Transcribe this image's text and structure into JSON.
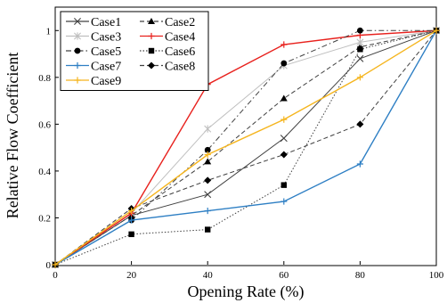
{
  "chart_data": {
    "type": "line",
    "x": [
      0,
      20,
      40,
      60,
      80,
      100
    ],
    "xlabel": "Opening Rate (%)",
    "ylabel": "Relative Flow Coefficient",
    "xlim": [
      0,
      100
    ],
    "ylim": [
      0,
      1.1
    ],
    "xticks": [
      "0",
      "20",
      "40",
      "60",
      "80",
      "100"
    ],
    "yticks": [
      "0",
      "0.2",
      "0.4",
      "0.6",
      "0.8",
      "1"
    ],
    "grid": false,
    "legend_position": "top-left",
    "series": [
      {
        "name": "Case1",
        "values": [
          0,
          0.21,
          0.3,
          0.54,
          0.88,
          1.0
        ],
        "color": "#404040",
        "marker": "x",
        "dash": "solid"
      },
      {
        "name": "Case2",
        "values": [
          0,
          0.21,
          0.44,
          0.71,
          0.93,
          1.0
        ],
        "color": "#404040",
        "marker": "triangle",
        "dash": "dashed"
      },
      {
        "name": "Case3",
        "values": [
          0,
          0.22,
          0.58,
          0.85,
          0.95,
          1.0
        ],
        "color": "#bfbfbf",
        "marker": "asterisk",
        "dash": "solid"
      },
      {
        "name": "Case4",
        "values": [
          0,
          0.22,
          0.77,
          0.94,
          0.98,
          1.0
        ],
        "color": "#e8211d",
        "marker": "plus",
        "dash": "solid"
      },
      {
        "name": "Case5",
        "values": [
          0,
          0.19,
          0.49,
          0.86,
          1.0,
          1.0
        ],
        "color": "#404040",
        "marker": "circle",
        "dash": "dashdot"
      },
      {
        "name": "Case6",
        "values": [
          0,
          0.13,
          0.15,
          0.34,
          0.92,
          1.0
        ],
        "color": "#404040",
        "marker": "square",
        "dash": "dotted"
      },
      {
        "name": "Case7",
        "values": [
          0,
          0.19,
          0.23,
          0.27,
          0.43,
          1.0
        ],
        "color": "#2e7fc4",
        "marker": "plus",
        "dash": "solid"
      },
      {
        "name": "Case8",
        "values": [
          0,
          0.24,
          0.36,
          0.47,
          0.6,
          1.0
        ],
        "color": "#404040",
        "marker": "diamond",
        "dash": "dashed"
      },
      {
        "name": "Case9",
        "values": [
          0,
          0.23,
          0.47,
          0.62,
          0.8,
          1.0
        ],
        "color": "#f5b51e",
        "marker": "plus",
        "dash": "solid"
      }
    ]
  }
}
